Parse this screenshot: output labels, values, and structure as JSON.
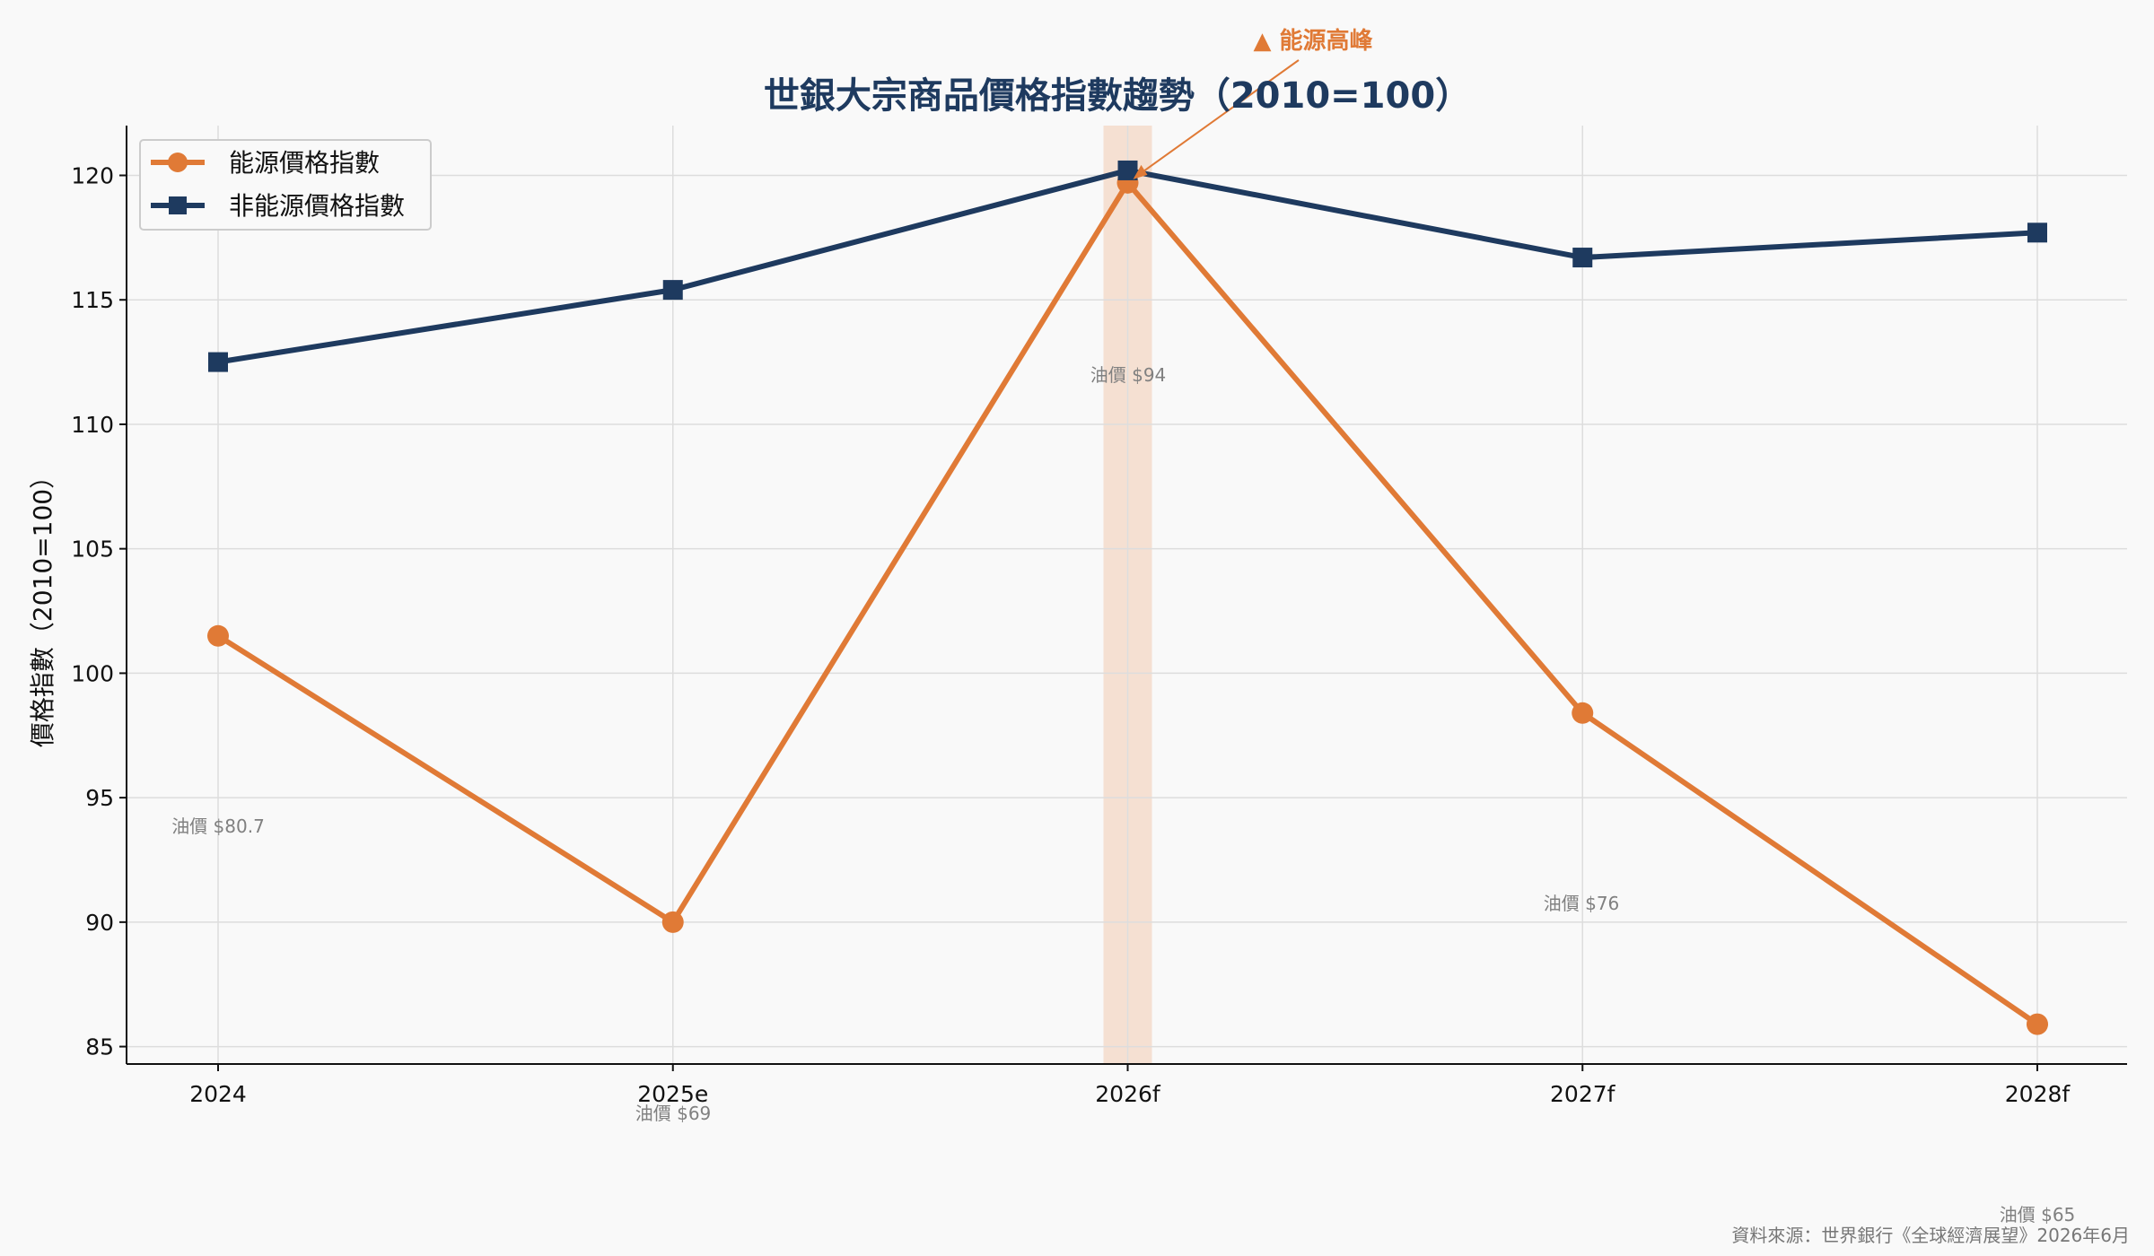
{
  "chart_data": {
    "type": "line",
    "title": "世銀大宗商品價格指數趨勢（2010=100）",
    "xlabel": "",
    "ylabel": "價格指數（2010=100）",
    "categories": [
      "2024",
      "2025e",
      "2026f",
      "2027f",
      "2028f"
    ],
    "ylim": [
      84.3,
      122
    ],
    "yticks": [
      85,
      90,
      95,
      100,
      105,
      110,
      115,
      120
    ],
    "grid": true,
    "legend_position": "top-left",
    "series": [
      {
        "name": "能源價格指數",
        "values": [
          101.5,
          90.0,
          119.7,
          98.4,
          85.9
        ],
        "color": "#e07a36",
        "marker": "circle"
      },
      {
        "name": "非能源價格指數",
        "values": [
          112.5,
          115.4,
          120.2,
          116.7,
          117.7
        ],
        "color": "#1e3a5f",
        "marker": "square"
      }
    ],
    "oil_labels": [
      "油價 $80.7",
      "油價 $69",
      "油價 $94",
      "油價 $76",
      "油價 $65"
    ],
    "highlight_category": "2026f",
    "highlight_color": "#f5dccb",
    "peak_annotation": "▲ 能源高峰"
  },
  "source": "資料來源：世界銀行《全球經濟展望》2026年6月"
}
